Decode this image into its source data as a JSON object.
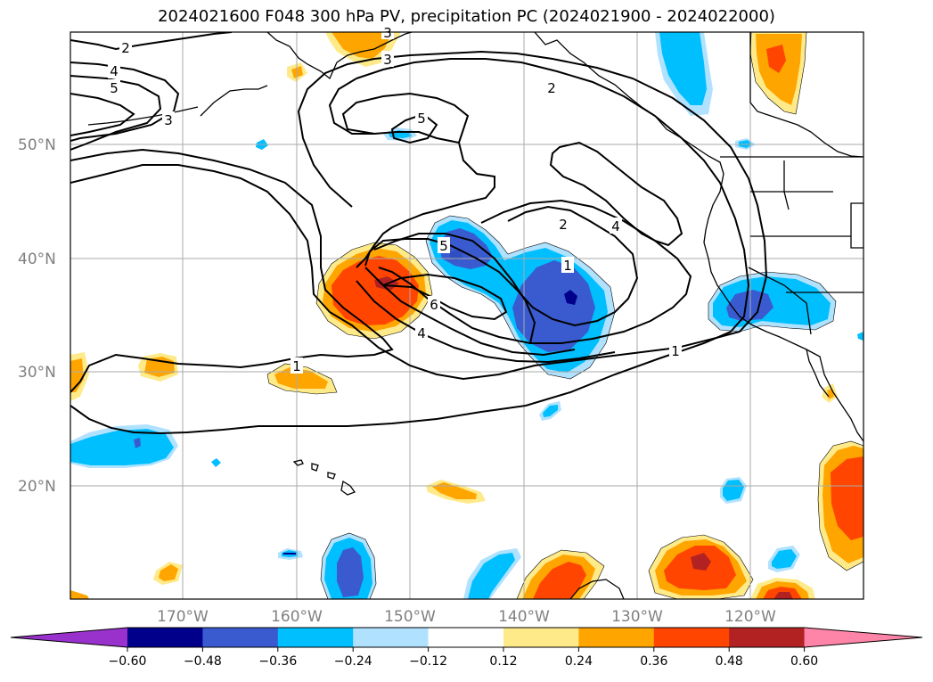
{
  "title": "2024021600 F048 300 hPa PV, precipitation PC (2024021900 - 2024022000)",
  "lat_labels": [
    "50°N",
    "40°N",
    "30°N",
    "20°N"
  ],
  "lon_labels": [
    "170°W",
    "160°W",
    "150°W",
    "140°W",
    "130°W",
    "120°W"
  ],
  "contour_labels": [
    "2",
    "4",
    "5",
    "3",
    "3",
    "3",
    "5",
    "2",
    "5",
    "2",
    "4",
    "1",
    "6",
    "4",
    "1",
    "1"
  ],
  "colorbar": {
    "ticks": [
      "−0.60",
      "−0.48",
      "−0.36",
      "−0.24",
      "−0.12",
      "0.12",
      "0.24",
      "0.36",
      "0.48",
      "0.60"
    ],
    "colors": [
      "#9932cc",
      "#00008b",
      "#3a5bcf",
      "#00bfff",
      "#b0e2ff",
      "#ffffff",
      "#ffea8a",
      "#ffa500",
      "#ff4500",
      "#b22222",
      "#ff85a8"
    ]
  }
}
